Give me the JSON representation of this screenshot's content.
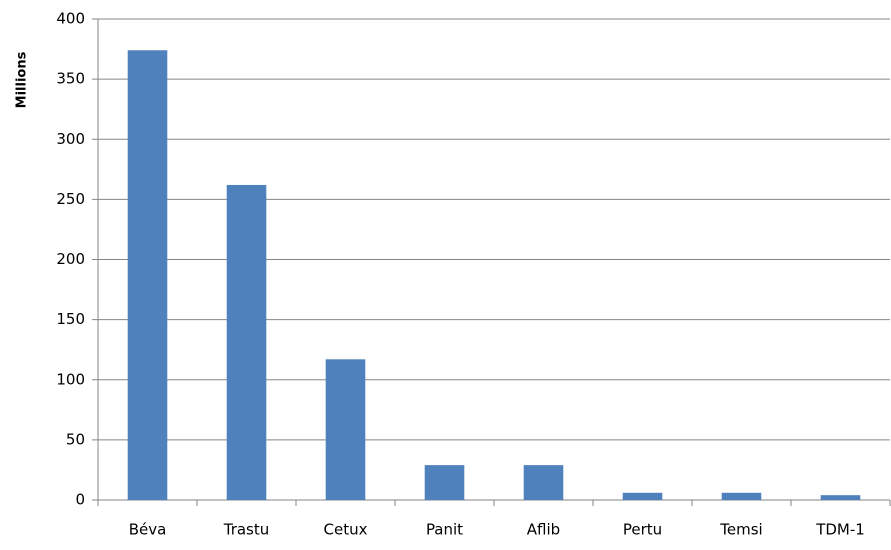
{
  "chart_data": {
    "type": "bar",
    "y_label": "Millions",
    "categories": [
      "Béva",
      "Trastu",
      "Cetux",
      "Panit",
      "Aflib",
      "Pertu",
      "Temsi",
      "TDM-1"
    ],
    "values": [
      374,
      262,
      117,
      29,
      29,
      6,
      6,
      4
    ],
    "color": "#4f81bd",
    "ylim": [
      0,
      400
    ],
    "yticks": [
      0,
      50,
      100,
      150,
      200,
      250,
      300,
      350,
      400
    ],
    "grid": true
  }
}
